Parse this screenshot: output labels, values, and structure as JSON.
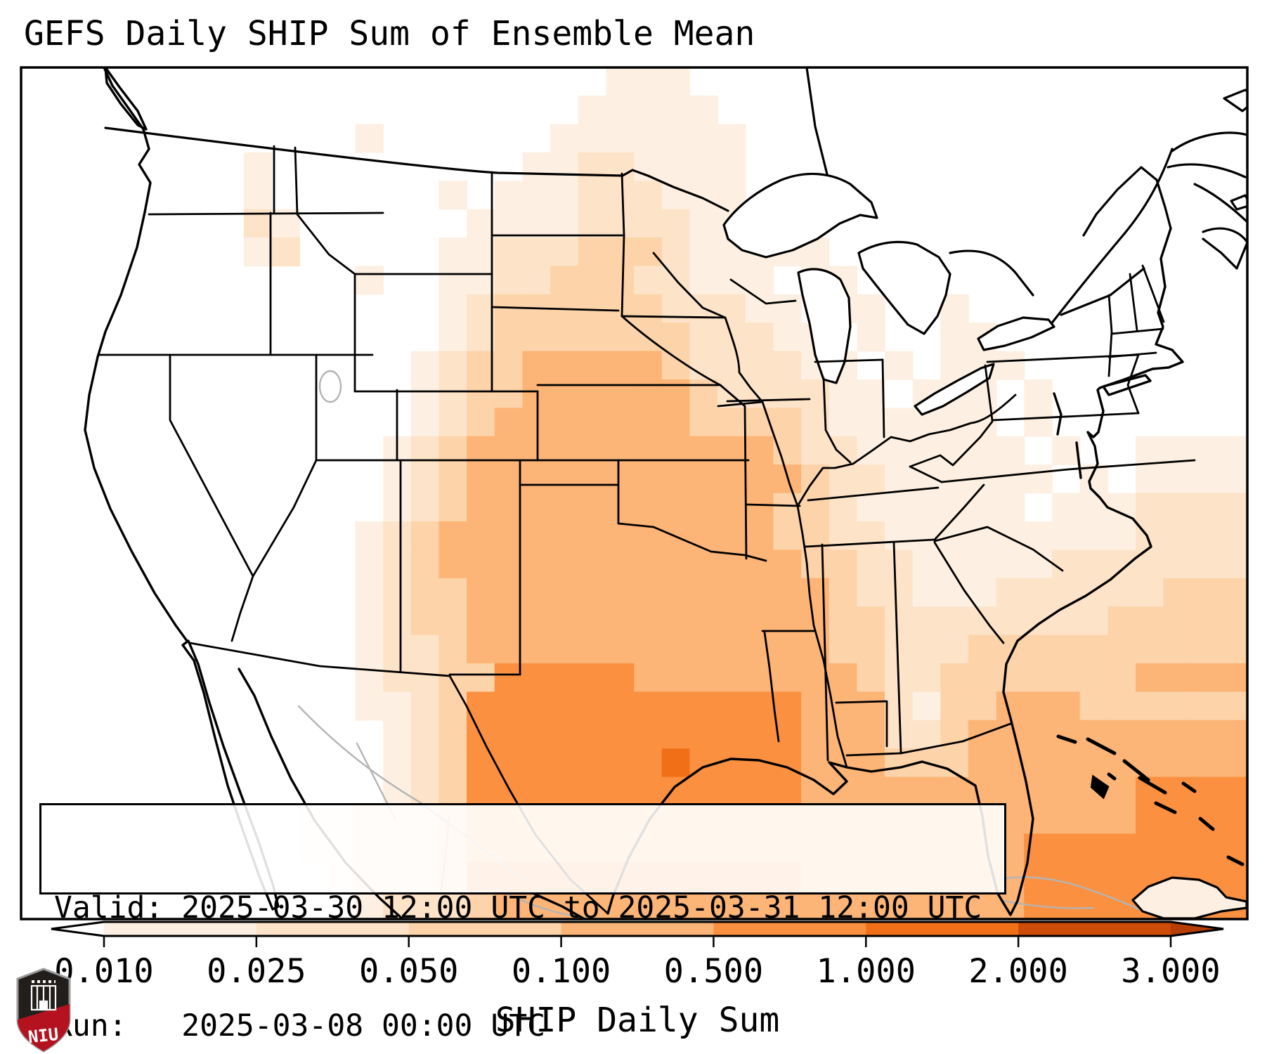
{
  "title": "GEFS Daily SHIP Sum of Ensemble Mean",
  "info_box": {
    "line1": "Valid: 2025-03-30 12:00 UTC to 2025-03-31 12:00 UTC",
    "line2": "Run:   2025-03-08 00:00 UTC"
  },
  "colorbar": {
    "label": "SHIP Daily Sum",
    "tick_labels": [
      "0.010",
      "0.025",
      "0.050",
      "0.100",
      "0.500",
      "1.000",
      "2.000",
      "3.000"
    ],
    "under_color": "#ffffff",
    "over_color": "#b63d03",
    "segment_colors": [
      "#fdf0e2",
      "#fde3c8",
      "#fdd3a9",
      "#fcb477",
      "#fb9040",
      "#f06f17",
      "#cc4c08"
    ]
  },
  "logo": {
    "text": "NIU",
    "shield_dark": "#221e1c",
    "band_red": "#b5121f",
    "border_gray": "#9a9a9a"
  },
  "map": {
    "background": "#ffffff",
    "frame_color": "#000000",
    "palette": [
      "#ffffff",
      "#fdf0e2",
      "#fde3c8",
      "#fdd3a9",
      "#fcb477",
      "#fb9040",
      "#f06f17",
      "#cc4c08",
      "#b63d03"
    ],
    "grid": {
      "cols": 44,
      "rows": 30,
      "rows_data": [
        "00000000000000000000011100000000000000000000",
        "00000000000000000000111110000000000000000000",
        "00000000000010000001111111000000000000000000",
        "00000000100000000011221111000000000000000000",
        "00000000100000010111222111000000000000000000",
        "00000000210000001111222211110000000000000000",
        "00000000120000011222333211111000000000000000",
        "00000000000010011223332211101100000000000000",
        "00000000000000012333333222110110010000000000",
        "00000000000000012333333322211010011000000000",
        "00000000000000123344444322221101011100000000",
        "00000000000000123344444432222110111010000000",
        "00000000000000123444444433332111111010000000",
        "00000000000001234444444444432211111101001111",
        "00000000000001234444444444443221111110101111",
        "00000000000001234444444444433211111101112222",
        "00000000000012344444444444433221111111112222",
        "00000000000012344444444444443322111112222222",
        "00000000000012334444444444444322111222222333",
        "00000000000012334444444444444332222222233333",
        "00000000000012234444444444444332223333333333",
        "00000000000012233555554444444432233333334444",
        "00000000000011235555555555554442133444333333",
        "00000000000001235555555555554442234444444444",
        "00000000000001235555555655554443334444444444",
        "00000000000001235555555555554444444444445555",
        "00000000001122234444444444444444444444445555",
        "00000000001122234444444444444444444455555555",
        "00000000000122235555555555554444444455555555",
        "00000000000012223444444444444444444455555555"
      ]
    }
  }
}
